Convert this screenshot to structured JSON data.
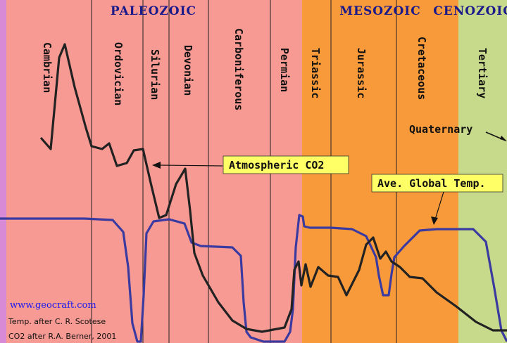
{
  "chart_data": {
    "type": "line",
    "eras": [
      {
        "name": "PALEOZOIC",
        "color": "#f79a94"
      },
      {
        "name": "MESOZOIC",
        "color": "#f89a3a"
      },
      {
        "name": "CENOZOIC",
        "color": "#c7d98a"
      }
    ],
    "periods": [
      {
        "name": "Cambrian",
        "era": "PALEOZOIC"
      },
      {
        "name": "Ordovician",
        "era": "PALEOZOIC"
      },
      {
        "name": "Silurian",
        "era": "PALEOZOIC"
      },
      {
        "name": "Devonian",
        "era": "PALEOZOIC"
      },
      {
        "name": "Carboniferous",
        "era": "PALEOZOIC"
      },
      {
        "name": "Permian",
        "era": "PALEOZOIC"
      },
      {
        "name": "Triassic",
        "era": "MESOZOIC"
      },
      {
        "name": "Jurassic",
        "era": "MESOZOIC"
      },
      {
        "name": "Cretaceous",
        "era": "MESOZOIC"
      },
      {
        "name": "Tertiary",
        "era": "CENOZOIC"
      }
    ],
    "quaternary_label": "Quaternary",
    "series": [
      {
        "name": "Atmospheric CO2",
        "color": "#222222"
      },
      {
        "name": "Ave. Global Temp.",
        "color": "#3a3aa0"
      }
    ],
    "annotations": {
      "site": "www.geocraft.com",
      "credit_temp": "Temp. after C. R. Scotese",
      "credit_co2": "CO2 after R.A. Berner, 2001"
    }
  }
}
